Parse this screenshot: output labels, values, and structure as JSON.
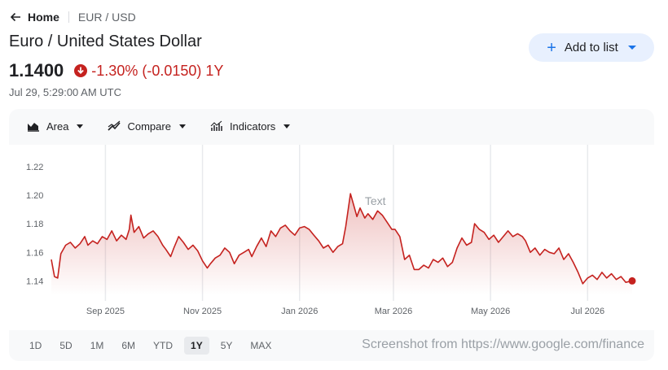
{
  "nav": {
    "home_label": "Home",
    "breadcrumb": "EUR / USD"
  },
  "header": {
    "title": "Euro / United States Dollar",
    "price": "1.1400",
    "change": "-1.30% (-0.0150) 1Y",
    "timestamp": "Jul 29, 5:29:00 AM UTC",
    "add_button": "Add to list"
  },
  "toolbar": {
    "area": "Area",
    "compare": "Compare",
    "indicators": "Indicators"
  },
  "ranges": [
    "1D",
    "5D",
    "1M",
    "6M",
    "YTD",
    "1Y",
    "5Y",
    "MAX"
  ],
  "selected_range": "1Y",
  "watermark": "Screenshot from https://www.google.com/finance",
  "colors": {
    "accent": "#c5221f",
    "brand_blue": "#1a73e8"
  },
  "chart_data": {
    "type": "area",
    "annotation": "Text",
    "y_ticks": [
      "1.22",
      "1.20",
      "1.18",
      "1.16",
      "1.14"
    ],
    "x_ticks": [
      "Sep 2025",
      "Nov 2025",
      "Jan 2026",
      "Mar 2026",
      "May 2026",
      "Jul 2026"
    ],
    "ylim": [
      1.13,
      1.225
    ],
    "x_domain": [
      "2025-07-29",
      "2026-07-29"
    ],
    "x_tick_dates": [
      "2025-09-01",
      "2025-11-01",
      "2026-01-01",
      "2026-03-01",
      "2026-05-01",
      "2026-07-01"
    ],
    "grid": true,
    "series": [
      {
        "values": [
          [
            "2025-07-29",
            1.155
          ],
          [
            "2025-07-31",
            1.143
          ],
          [
            "2025-08-02",
            1.142
          ],
          [
            "2025-08-04",
            1.159
          ],
          [
            "2025-08-07",
            1.165
          ],
          [
            "2025-08-10",
            1.167
          ],
          [
            "2025-08-13",
            1.163
          ],
          [
            "2025-08-16",
            1.166
          ],
          [
            "2025-08-19",
            1.171
          ],
          [
            "2025-08-21",
            1.165
          ],
          [
            "2025-08-24",
            1.168
          ],
          [
            "2025-08-27",
            1.166
          ],
          [
            "2025-08-30",
            1.171
          ],
          [
            "2025-09-02",
            1.169
          ],
          [
            "2025-09-05",
            1.175
          ],
          [
            "2025-09-08",
            1.168
          ],
          [
            "2025-09-11",
            1.172
          ],
          [
            "2025-09-14",
            1.169
          ],
          [
            "2025-09-16",
            1.176
          ],
          [
            "2025-09-17",
            1.186
          ],
          [
            "2025-09-19",
            1.174
          ],
          [
            "2025-09-22",
            1.178
          ],
          [
            "2025-09-25",
            1.17
          ],
          [
            "2025-09-28",
            1.173
          ],
          [
            "2025-10-01",
            1.175
          ],
          [
            "2025-10-04",
            1.171
          ],
          [
            "2025-10-07",
            1.165
          ],
          [
            "2025-10-09",
            1.162
          ],
          [
            "2025-10-12",
            1.157
          ],
          [
            "2025-10-14",
            1.163
          ],
          [
            "2025-10-17",
            1.171
          ],
          [
            "2025-10-20",
            1.167
          ],
          [
            "2025-10-23",
            1.162
          ],
          [
            "2025-10-26",
            1.165
          ],
          [
            "2025-10-29",
            1.161
          ],
          [
            "2025-11-01",
            1.154
          ],
          [
            "2025-11-04",
            1.149
          ],
          [
            "2025-11-06",
            1.152
          ],
          [
            "2025-11-09",
            1.156
          ],
          [
            "2025-11-12",
            1.158
          ],
          [
            "2025-11-15",
            1.163
          ],
          [
            "2025-11-18",
            1.16
          ],
          [
            "2025-11-21",
            1.152
          ],
          [
            "2025-11-24",
            1.158
          ],
          [
            "2025-11-27",
            1.16
          ],
          [
            "2025-11-30",
            1.162
          ],
          [
            "2025-12-02",
            1.157
          ],
          [
            "2025-12-05",
            1.164
          ],
          [
            "2025-12-08",
            1.17
          ],
          [
            "2025-12-11",
            1.164
          ],
          [
            "2025-12-14",
            1.175
          ],
          [
            "2025-12-17",
            1.171
          ],
          [
            "2025-12-20",
            1.177
          ],
          [
            "2025-12-23",
            1.179
          ],
          [
            "2025-12-26",
            1.175
          ],
          [
            "2025-12-29",
            1.172
          ],
          [
            "2026-01-01",
            1.177
          ],
          [
            "2026-01-04",
            1.178
          ],
          [
            "2026-01-07",
            1.176
          ],
          [
            "2026-01-10",
            1.172
          ],
          [
            "2026-01-13",
            1.168
          ],
          [
            "2026-01-16",
            1.163
          ],
          [
            "2026-01-19",
            1.165
          ],
          [
            "2026-01-22",
            1.16
          ],
          [
            "2026-01-25",
            1.164
          ],
          [
            "2026-01-28",
            1.166
          ],
          [
            "2026-01-30",
            1.178
          ],
          [
            "2026-02-02",
            1.201
          ],
          [
            "2026-02-04",
            1.193
          ],
          [
            "2026-02-06",
            1.185
          ],
          [
            "2026-02-08",
            1.191
          ],
          [
            "2026-02-11",
            1.184
          ],
          [
            "2026-02-13",
            1.187
          ],
          [
            "2026-02-16",
            1.183
          ],
          [
            "2026-02-19",
            1.189
          ],
          [
            "2026-02-22",
            1.186
          ],
          [
            "2026-02-25",
            1.181
          ],
          [
            "2026-02-28",
            1.176
          ],
          [
            "2026-03-02",
            1.176
          ],
          [
            "2026-03-05",
            1.171
          ],
          [
            "2026-03-08",
            1.155
          ],
          [
            "2026-03-11",
            1.158
          ],
          [
            "2026-03-14",
            1.148
          ],
          [
            "2026-03-17",
            1.148
          ],
          [
            "2026-03-20",
            1.151
          ],
          [
            "2026-03-23",
            1.149
          ],
          [
            "2026-03-26",
            1.155
          ],
          [
            "2026-03-29",
            1.153
          ],
          [
            "2026-04-01",
            1.156
          ],
          [
            "2026-04-04",
            1.15
          ],
          [
            "2026-04-07",
            1.153
          ],
          [
            "2026-04-10",
            1.163
          ],
          [
            "2026-04-13",
            1.17
          ],
          [
            "2026-04-16",
            1.165
          ],
          [
            "2026-04-19",
            1.167
          ],
          [
            "2026-04-21",
            1.18
          ],
          [
            "2026-04-24",
            1.176
          ],
          [
            "2026-04-27",
            1.174
          ],
          [
            "2026-04-30",
            1.169
          ],
          [
            "2026-05-03",
            1.172
          ],
          [
            "2026-05-06",
            1.167
          ],
          [
            "2026-05-09",
            1.171
          ],
          [
            "2026-05-12",
            1.175
          ],
          [
            "2026-05-15",
            1.171
          ],
          [
            "2026-05-18",
            1.173
          ],
          [
            "2026-05-21",
            1.171
          ],
          [
            "2026-05-23",
            1.168
          ],
          [
            "2026-05-26",
            1.16
          ],
          [
            "2026-05-29",
            1.163
          ],
          [
            "2026-06-01",
            1.158
          ],
          [
            "2026-06-04",
            1.162
          ],
          [
            "2026-06-07",
            1.16
          ],
          [
            "2026-06-10",
            1.159
          ],
          [
            "2026-06-13",
            1.163
          ],
          [
            "2026-06-16",
            1.155
          ],
          [
            "2026-06-19",
            1.159
          ],
          [
            "2026-06-22",
            1.153
          ],
          [
            "2026-06-25",
            1.146
          ],
          [
            "2026-06-28",
            1.138
          ],
          [
            "2026-07-01",
            1.142
          ],
          [
            "2026-07-04",
            1.144
          ],
          [
            "2026-07-07",
            1.141
          ],
          [
            "2026-07-10",
            1.146
          ],
          [
            "2026-07-13",
            1.142
          ],
          [
            "2026-07-16",
            1.145
          ],
          [
            "2026-07-19",
            1.141
          ],
          [
            "2026-07-22",
            1.143
          ],
          [
            "2026-07-25",
            1.139
          ],
          [
            "2026-07-29",
            1.14
          ]
        ]
      }
    ]
  }
}
